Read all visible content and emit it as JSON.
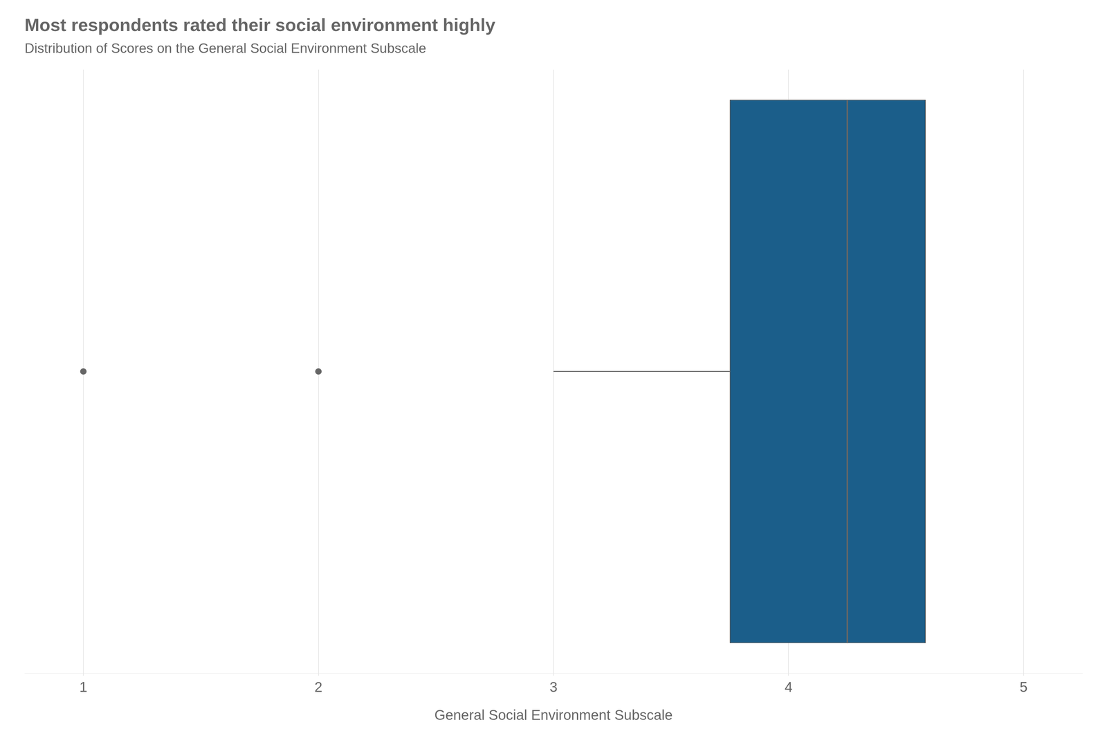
{
  "chart_data": {
    "type": "box",
    "orientation": "horizontal",
    "title": "Most respondents rated their social environment highly",
    "subtitle": "Distribution of Scores on the General Social Environment Subscale",
    "x_label": "General Social Environment Subscale",
    "xlim": [
      0.75,
      5.25
    ],
    "xticks": [
      1,
      2,
      3,
      4,
      5
    ],
    "whisker_min": 3.0,
    "q1": 3.75,
    "median": 4.25,
    "q3": 4.583,
    "whisker_max": 4.583,
    "outliers": [
      1.0,
      2.0
    ],
    "color": "#1b5e8a",
    "grid": true,
    "tick_labels": "x"
  }
}
